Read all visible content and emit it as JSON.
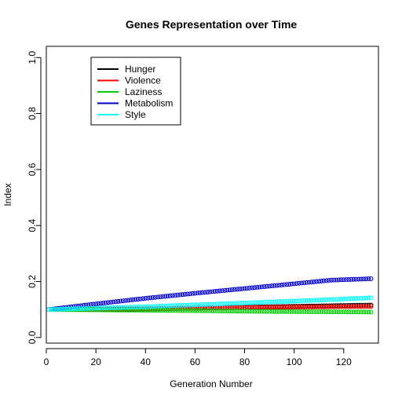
{
  "chart_data": {
    "type": "scatter",
    "title": "Genes Representation over Time",
    "xlabel": "Generation Number",
    "ylabel": "Index",
    "xlim": [
      0,
      134
    ],
    "ylim": [
      -0.02,
      1.04
    ],
    "x_ticks": [
      0,
      20,
      40,
      60,
      80,
      100,
      120
    ],
    "y_ticks": [
      0.0,
      0.2,
      0.4,
      0.6,
      0.8,
      1.0
    ],
    "x_tick_labels": [
      "0",
      "20",
      "40",
      "60",
      "80",
      "100",
      "120"
    ],
    "y_tick_labels": [
      "0.0",
      "0.2",
      "0.4",
      "0.6",
      "0.8",
      "1.0"
    ],
    "legend_position": "top-left",
    "x_range": [
      1,
      131
    ],
    "series": [
      {
        "name": "Hunger",
        "color": "#000000",
        "knots": [
          [
            1,
            0.1
          ],
          [
            30,
            0.1
          ],
          [
            60,
            0.105
          ],
          [
            90,
            0.11
          ],
          [
            131,
            0.116
          ]
        ]
      },
      {
        "name": "Violence",
        "color": "#ff0000",
        "knots": [
          [
            1,
            0.1
          ],
          [
            30,
            0.102
          ],
          [
            60,
            0.105
          ],
          [
            90,
            0.108
          ],
          [
            131,
            0.111
          ]
        ]
      },
      {
        "name": "Laziness",
        "color": "#00cd00",
        "knots": [
          [
            1,
            0.1
          ],
          [
            30,
            0.098
          ],
          [
            60,
            0.096
          ],
          [
            90,
            0.093
          ],
          [
            131,
            0.091
          ]
        ]
      },
      {
        "name": "Metabolism",
        "color": "#0000cd",
        "knots": [
          [
            1,
            0.1
          ],
          [
            20,
            0.12
          ],
          [
            40,
            0.14
          ],
          [
            60,
            0.158
          ],
          [
            80,
            0.175
          ],
          [
            100,
            0.192
          ],
          [
            115,
            0.205
          ],
          [
            131,
            0.21
          ]
        ]
      },
      {
        "name": "Style",
        "color": "#00ffff",
        "knots": [
          [
            1,
            0.1
          ],
          [
            40,
            0.11
          ],
          [
            70,
            0.12
          ],
          [
            100,
            0.13
          ],
          [
            131,
            0.142
          ]
        ]
      }
    ]
  }
}
